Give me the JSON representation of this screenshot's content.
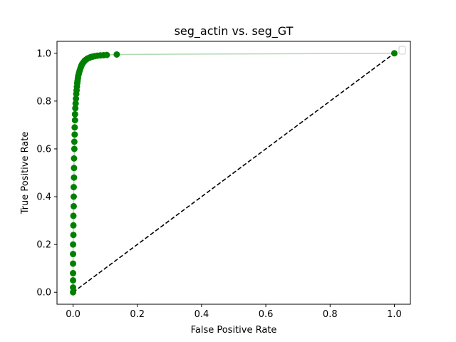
{
  "chart_data": {
    "type": "line",
    "title": "seg_actin vs. seg_GT",
    "xlabel": "False Positive Rate",
    "ylabel": "True Positive Rate",
    "xlim": [
      -0.05,
      1.05
    ],
    "ylim": [
      -0.05,
      1.05
    ],
    "xticks": [
      "0.0",
      "0.2",
      "0.4",
      "0.6",
      "0.8",
      "1.0"
    ],
    "yticks": [
      "0.0",
      "0.2",
      "0.4",
      "0.6",
      "0.8",
      "1.0"
    ],
    "grid": false,
    "legend": "top-right (empty)",
    "series": [
      {
        "style": "points with connecting line",
        "color": "#008000",
        "x": [
          0.0,
          0.0,
          0.0,
          0.0,
          0.0,
          0.0,
          0.0,
          0.001,
          0.001,
          0.001,
          0.002,
          0.002,
          0.002,
          0.003,
          0.003,
          0.003,
          0.004,
          0.004,
          0.005,
          0.005,
          0.006,
          0.006,
          0.007,
          0.008,
          0.009,
          0.01,
          0.011,
          0.012,
          0.013,
          0.014,
          0.015,
          0.016,
          0.018,
          0.02,
          0.022,
          0.024,
          0.026,
          0.028,
          0.031,
          0.034,
          0.037,
          0.041,
          0.045,
          0.05,
          0.055,
          0.061,
          0.068,
          0.076,
          0.085,
          0.095,
          0.105,
          0.136,
          1.0
        ],
        "y": [
          0.0,
          0.02,
          0.05,
          0.08,
          0.12,
          0.16,
          0.2,
          0.24,
          0.28,
          0.32,
          0.36,
          0.4,
          0.44,
          0.48,
          0.52,
          0.56,
          0.6,
          0.63,
          0.66,
          0.69,
          0.72,
          0.745,
          0.77,
          0.79,
          0.81,
          0.83,
          0.845,
          0.86,
          0.875,
          0.885,
          0.895,
          0.905,
          0.915,
          0.925,
          0.933,
          0.941,
          0.948,
          0.954,
          0.96,
          0.965,
          0.97,
          0.974,
          0.978,
          0.981,
          0.984,
          0.986,
          0.988,
          0.99,
          0.991,
          0.992,
          0.993,
          0.995,
          1.0
        ]
      },
      {
        "style": "dashed reference line",
        "color": "#000000",
        "x": [
          0,
          1
        ],
        "y": [
          0,
          1
        ]
      }
    ]
  }
}
